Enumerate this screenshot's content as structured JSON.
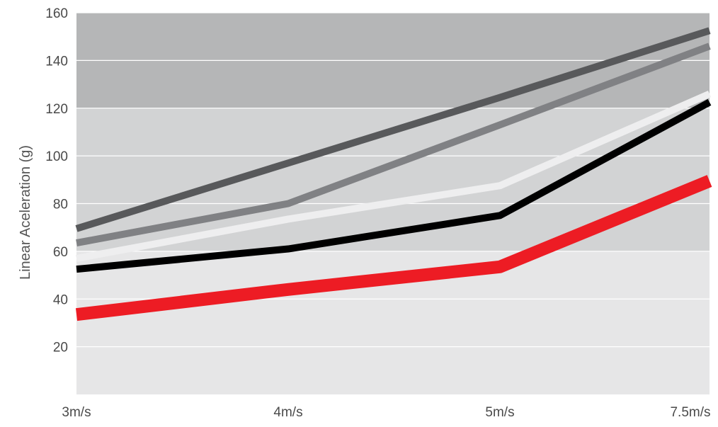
{
  "chart_data": {
    "type": "line",
    "title": "",
    "xlabel": "",
    "ylabel": "Linear Aceleration (g)",
    "categories": [
      "3m/s",
      "4m/s",
      "5m/s",
      "7.5m/s"
    ],
    "ylim": [
      0,
      160
    ],
    "yticks": [
      20,
      40,
      60,
      80,
      100,
      120,
      140,
      160
    ],
    "grid": true,
    "legend": "none",
    "bands": [
      {
        "from": 0,
        "to": 60,
        "color": "#e6e6e7"
      },
      {
        "from": 60,
        "to": 120,
        "color": "#d2d3d4"
      },
      {
        "from": 120,
        "to": 160,
        "color": "#b5b6b7"
      }
    ],
    "series": [
      {
        "values": [
          69.5,
          97,
          124.5,
          152.5
        ],
        "color": "#58595b",
        "width": 10
      },
      {
        "values": [
          63.5,
          80,
          113,
          146
        ],
        "color": "#808184",
        "width": 10
      },
      {
        "values": [
          57,
          73.5,
          87.5,
          126
        ],
        "color": "#eeeeef",
        "width": 10
      },
      {
        "values": [
          52.5,
          61,
          75,
          122.5
        ],
        "color": "#000000",
        "width": 10
      },
      {
        "values": [
          33.5,
          44,
          53.5,
          89.5
        ],
        "color": "#ed1c24",
        "width": 18
      }
    ]
  }
}
